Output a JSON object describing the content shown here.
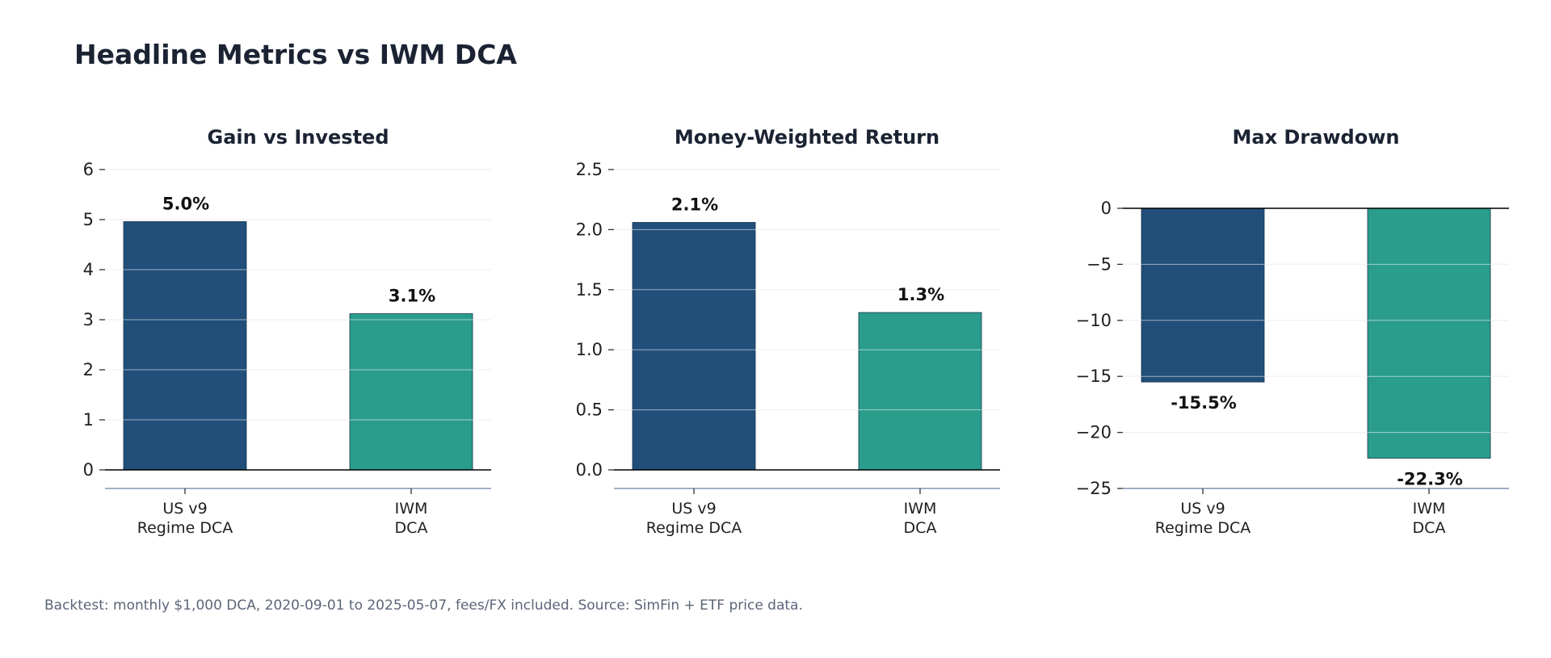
{
  "title": "Headline Metrics vs IWM DCA",
  "footnote": "Backtest: monthly $1,000 DCA, 2020-09-01 to 2025-05-07, fees/FX included. Source: SimFin + ETF price data.",
  "colors": {
    "us_v9": "#214f79",
    "iwm": "#2a9d8c",
    "grid": "#e5e5e5",
    "axis_bottom": "#8393b6"
  },
  "chart_data": [
    {
      "type": "bar",
      "title": "Gain vs Invested",
      "categories": [
        [
          "US v9",
          "Regime DCA"
        ],
        [
          "IWM",
          "DCA"
        ]
      ],
      "values": [
        4.96,
        3.12
      ],
      "data_labels": [
        "5.0%",
        "3.1%"
      ],
      "ylim": [
        0,
        6
      ],
      "yticks": [
        0,
        1,
        2,
        3,
        4,
        5,
        6
      ],
      "ytick_labels": [
        "0",
        "1",
        "2",
        "3",
        "4",
        "5",
        "6"
      ],
      "grid": true
    },
    {
      "type": "bar",
      "title": "Money-Weighted Return",
      "categories": [
        [
          "US v9",
          "Regime DCA"
        ],
        [
          "IWM",
          "DCA"
        ]
      ],
      "values": [
        2.06,
        1.31
      ],
      "data_labels": [
        "2.1%",
        "1.3%"
      ],
      "ylim": [
        0,
        2.5
      ],
      "yticks": [
        0,
        0.5,
        1.0,
        1.5,
        2.0,
        2.5
      ],
      "ytick_labels": [
        "0.0",
        "0.5",
        "1.0",
        "1.5",
        "2.0",
        "2.5"
      ],
      "grid": true
    },
    {
      "type": "bar",
      "title": "Max Drawdown",
      "categories": [
        [
          "US v9",
          "Regime DCA"
        ],
        [
          "IWM",
          "DCA"
        ]
      ],
      "values": [
        -15.5,
        -22.3
      ],
      "data_labels": [
        "-15.5%",
        "-22.3%"
      ],
      "ylim": [
        -25,
        0
      ],
      "yticks": [
        0,
        -5,
        -10,
        -15,
        -20,
        -25
      ],
      "ytick_labels": [
        "0",
        "−5",
        "−10",
        "−15",
        "−20",
        "−25"
      ],
      "grid": true
    }
  ]
}
